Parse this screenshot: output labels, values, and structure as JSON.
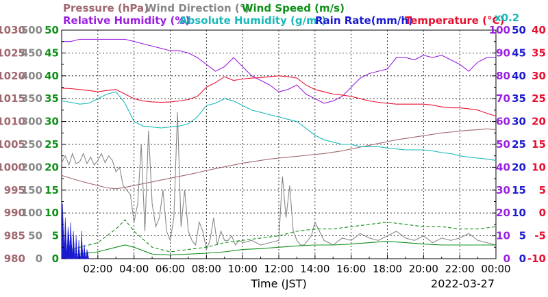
{
  "chart_data": {
    "type": "line",
    "header_row1": [
      {
        "name": "Pressure (hPa)",
        "color": "#a0686e"
      },
      {
        "name": "Wind Direction (°)",
        "color": "#888888"
      },
      {
        "name": "Wind Speed (m/s)",
        "color": "#10901a"
      }
    ],
    "header_row2": [
      {
        "name": "Relative Humidity (%)",
        "color": "#9a1fe0"
      },
      {
        "name": "Absolute Humidity (g/m³)",
        "color": "#1ab8b8"
      },
      {
        "name": "Rain Rate(mm/h)",
        "color": "#1a1ad0"
      },
      {
        "name": "Temperature (°C)",
        "color": "#e81030"
      }
    ],
    "rain_scale_note": "x0.2",
    "xlabel": "Time (JST)",
    "date_label": "2022-03-27",
    "x_range": [
      0,
      24
    ],
    "x_ticks": [
      "02:00",
      "04:00",
      "06:00",
      "08:00",
      "10:00",
      "12:00",
      "14:00",
      "16:00",
      "18:00",
      "20:00",
      "22:00",
      "00:00"
    ],
    "left_axes": [
      {
        "name": "Pressure",
        "color": "#a0686e",
        "ticks": [
          "1030",
          "1025",
          "1020",
          "1015",
          "1010",
          "1005",
          "1000",
          "995",
          "990",
          "985",
          "980"
        ],
        "ylim": [
          980,
          1030
        ]
      },
      {
        "name": "Wind Direction",
        "color": "#888888",
        "ticks": [
          "500",
          "450",
          "400",
          "350",
          "300",
          "250",
          "200",
          "150",
          "100",
          "50",
          "0"
        ],
        "ylim": [
          0,
          500
        ]
      },
      {
        "name": "Wind Speed",
        "color": "#10901a",
        "ticks": [
          "50",
          "45",
          "40",
          "35",
          "30",
          "25",
          "20",
          "15",
          "10",
          "5",
          "0"
        ],
        "ylim": [
          0,
          50
        ]
      }
    ],
    "right_axes": [
      {
        "name": "Relative Humidity",
        "color": "#9a1fe0",
        "ticks": [
          "100",
          "90",
          "80",
          "70",
          "60",
          "50",
          "40",
          "30",
          "20",
          "10",
          "0"
        ],
        "ylim": [
          0,
          100
        ]
      },
      {
        "name": "Rain Rate",
        "color": "#1a1ad0",
        "ticks": [
          "50",
          "45",
          "40",
          "35",
          "30",
          "25",
          "20",
          "15",
          "10",
          "5",
          "0"
        ],
        "ylim": [
          0,
          50
        ]
      },
      {
        "name": "Temperature",
        "color": "#e81030",
        "ticks": [
          "40",
          "35",
          "30",
          "25",
          "20",
          "15",
          "10",
          "5",
          "0",
          "-5",
          "-10"
        ],
        "ylim": [
          -10,
          40
        ]
      }
    ],
    "series": [
      {
        "name": "Pressure (hPa)",
        "color": "#a0686e",
        "axis": "pressure",
        "x": [
          0.0,
          0.5,
          1.0,
          1.5,
          2.0,
          2.5,
          3.0,
          3.5,
          4.0,
          4.5,
          5.0,
          5.5,
          6.0,
          6.5,
          7.0,
          7.5,
          8.0,
          8.5,
          9.0,
          9.5,
          10.0,
          10.5,
          11.0,
          11.5,
          12.0,
          12.5,
          13.0,
          13.5,
          14.0,
          14.5,
          15.0,
          15.5,
          16.0,
          16.5,
          17.0,
          17.5,
          18.0,
          18.5,
          19.0,
          19.5,
          20.0,
          20.5,
          21.0,
          21.5,
          22.0,
          22.5,
          23.0,
          23.5,
          24.0
        ],
        "y": [
          998.2,
          997.6,
          997.0,
          996.5,
          996.0,
          995.5,
          995.3,
          995.6,
          996.0,
          996.4,
          996.8,
          997.2,
          997.6,
          998.0,
          998.4,
          998.8,
          999.3,
          999.7,
          1000.1,
          1000.5,
          1000.9,
          1001.2,
          1001.5,
          1001.8,
          1002.0,
          1002.2,
          1002.4,
          1002.6,
          1002.8,
          1003.0,
          1003.3,
          1003.6,
          1004.0,
          1004.4,
          1004.8,
          1005.2,
          1005.6,
          1006.0,
          1006.3,
          1006.6,
          1006.9,
          1007.2,
          1007.5,
          1007.7,
          1007.9,
          1008.1,
          1008.2,
          1008.4,
          1008.2
        ]
      },
      {
        "name": "Wind Direction (°)",
        "color": "#888888",
        "axis": "wind_dir",
        "x": [
          0.0,
          0.2,
          0.4,
          0.6,
          0.8,
          1.0,
          1.2,
          1.4,
          1.6,
          1.8,
          2.0,
          2.2,
          2.4,
          2.6,
          2.8,
          3.0,
          3.2,
          3.4,
          3.6,
          3.8,
          4.0,
          4.2,
          4.4,
          4.6,
          4.8,
          5.0,
          5.2,
          5.4,
          5.6,
          5.8,
          6.0,
          6.2,
          6.4,
          6.6,
          6.8,
          7.0,
          7.2,
          7.4,
          7.6,
          7.8,
          8.0,
          8.2,
          8.4,
          8.6,
          8.8,
          9.0,
          9.2,
          9.4,
          9.6,
          9.8,
          10.0,
          10.5,
          11.0,
          11.5,
          12.0,
          12.2,
          12.4,
          12.6,
          12.8,
          13.0,
          13.2,
          13.4,
          13.6,
          13.8,
          14.0,
          14.5,
          15.0,
          15.5,
          16.0,
          16.5,
          17.0,
          17.5,
          18.0,
          18.5,
          19.0,
          19.5,
          20.0,
          20.5,
          21.0,
          21.5,
          22.0,
          22.5,
          23.0,
          23.5,
          24.0
        ],
        "y": [
          210,
          225,
          205,
          230,
          208,
          212,
          230,
          208,
          222,
          205,
          215,
          230,
          210,
          225,
          215,
          190,
          200,
          160,
          150,
          140,
          80,
          120,
          250,
          60,
          280,
          120,
          70,
          90,
          150,
          60,
          40,
          90,
          320,
          70,
          150,
          60,
          40,
          30,
          80,
          60,
          20,
          40,
          90,
          30,
          60,
          40,
          40,
          50,
          30,
          40,
          35,
          40,
          30,
          35,
          40,
          180,
          90,
          160,
          60,
          40,
          30,
          30,
          40,
          50,
          80,
          40,
          30,
          45,
          40,
          55,
          45,
          40,
          50,
          60,
          45,
          40,
          50,
          35,
          45,
          40,
          45,
          55,
          40,
          35,
          30
        ]
      },
      {
        "name": "Wind Speed max (m/s)",
        "color": "#10901a",
        "axis": "wind_spd",
        "style": "dashed",
        "x": [
          0,
          1,
          2,
          3,
          3.5,
          4,
          5,
          6,
          7,
          8,
          9,
          10,
          11,
          12,
          13,
          14,
          15,
          16,
          17,
          18,
          19,
          20,
          21,
          22,
          23,
          24
        ],
        "y": [
          1.5,
          2.5,
          3.5,
          6.5,
          8.5,
          6.0,
          2.5,
          1.5,
          2.0,
          2.5,
          3.5,
          4.0,
          4.5,
          5.0,
          6.0,
          6.5,
          6.5,
          7.0,
          7.5,
          8.0,
          7.5,
          7.0,
          7.0,
          6.5,
          6.5,
          7.0
        ]
      },
      {
        "name": "Wind Speed (m/s)",
        "color": "#10901a",
        "axis": "wind_spd",
        "style": "solid",
        "x": [
          0,
          1,
          2,
          3,
          3.5,
          4,
          5,
          6,
          7,
          8,
          9,
          10,
          11,
          12,
          13,
          14,
          15,
          16,
          17,
          18,
          19,
          20,
          21,
          22,
          23,
          24
        ],
        "y": [
          0.8,
          1.0,
          1.5,
          2.5,
          3.0,
          2.5,
          1.0,
          0.8,
          1.0,
          1.2,
          1.5,
          2.0,
          2.2,
          2.5,
          2.8,
          3.0,
          3.0,
          3.2,
          3.5,
          3.8,
          3.5,
          3.2,
          3.0,
          3.0,
          3.0,
          3.0
        ]
      },
      {
        "name": "Relative Humidity (%)",
        "color": "#9a1fe0",
        "axis": "rh",
        "x": [
          0,
          0.5,
          1,
          1.5,
          2,
          2.5,
          3,
          3.5,
          4,
          4.5,
          5,
          5.5,
          6,
          6.5,
          7,
          7.5,
          8,
          8.5,
          9,
          9.5,
          10,
          10.5,
          11,
          11.5,
          12,
          12.5,
          13,
          13.5,
          14,
          14.5,
          15,
          15.5,
          16,
          16.5,
          17,
          17.5,
          18,
          18.5,
          19,
          19.5,
          20,
          20.5,
          21,
          21.5,
          22,
          22.5,
          23,
          23.5,
          24
        ],
        "y": [
          95,
          95,
          96,
          96,
          96,
          96,
          96,
          96,
          95,
          94,
          93,
          92,
          91,
          91,
          90,
          88,
          85,
          82,
          84,
          88,
          84,
          80,
          78,
          76,
          73,
          74,
          76,
          72,
          70,
          68,
          69,
          71,
          75,
          79,
          81,
          82,
          83,
          88,
          88,
          87,
          89,
          88,
          89,
          87,
          85,
          82,
          86,
          88,
          88
        ]
      },
      {
        "name": "Absolute Humidity (g/m³)",
        "color": "#1ab8b8",
        "axis": "abs_h",
        "x": [
          0,
          0.5,
          1,
          1.5,
          2,
          2.5,
          3,
          3.5,
          4,
          4.5,
          5,
          5.5,
          6,
          6.5,
          7,
          7.5,
          8,
          8.5,
          9,
          9.5,
          10,
          10.5,
          11,
          11.5,
          12,
          12.5,
          13,
          13.5,
          14,
          14.5,
          15,
          15.5,
          16,
          16.5,
          17,
          17.5,
          18,
          18.5,
          19,
          19.5,
          20,
          20.5,
          21,
          21.5,
          22,
          22.5,
          23,
          23.5,
          24
        ],
        "y": [
          34.5,
          34.2,
          33.8,
          34.0,
          35.0,
          36.0,
          36.5,
          34.0,
          30.0,
          29.0,
          28.8,
          28.6,
          28.8,
          29.0,
          29.5,
          31.0,
          33.5,
          34.0,
          35.0,
          34.5,
          33.5,
          32.5,
          32.0,
          31.5,
          31.0,
          30.5,
          30.0,
          28.5,
          27.0,
          26.0,
          25.5,
          25.0,
          25.0,
          24.5,
          24.5,
          24.5,
          24.2,
          24.0,
          23.8,
          23.8,
          23.8,
          23.6,
          23.2,
          23.0,
          22.5,
          22.2,
          22.0,
          21.8,
          21.5
        ]
      },
      {
        "name": "Temperature (°C)",
        "color": "#e81030",
        "axis": "temp",
        "x": [
          0,
          0.5,
          1,
          1.5,
          2,
          2.5,
          3,
          3.5,
          4,
          4.5,
          5,
          5.5,
          6,
          6.5,
          7,
          7.5,
          8,
          8.5,
          9,
          9.5,
          10,
          10.5,
          11,
          11.5,
          12,
          12.5,
          13,
          13.5,
          14,
          14.5,
          15,
          15.5,
          16,
          16.5,
          17,
          17.5,
          18,
          18.5,
          19,
          19.5,
          20,
          20.5,
          21,
          21.5,
          22,
          22.5,
          23,
          23.5,
          24
        ],
        "y": [
          27.3,
          27.2,
          27.0,
          26.8,
          26.5,
          26.8,
          27.0,
          26.0,
          25.0,
          24.5,
          24.3,
          24.2,
          24.3,
          24.5,
          24.8,
          25.5,
          27.5,
          28.5,
          29.8,
          29.0,
          29.3,
          29.5,
          29.6,
          29.8,
          30.0,
          29.8,
          29.5,
          28.0,
          27.0,
          26.5,
          26.0,
          25.8,
          25.5,
          25.0,
          24.5,
          24.2,
          24.0,
          23.8,
          23.8,
          23.8,
          23.8,
          23.6,
          23.2,
          23.0,
          23.0,
          22.8,
          22.5,
          21.8,
          21.2
        ]
      },
      {
        "name": "Rain Rate(mm/h)",
        "color": "#1a1ad0",
        "axis": "rain",
        "style": "filled",
        "x": [
          0.0,
          0.05,
          0.1,
          0.15,
          0.2,
          0.25,
          0.3,
          0.35,
          0.4,
          0.45,
          0.5,
          0.55,
          0.6,
          0.65,
          0.7,
          0.75,
          0.8,
          0.85,
          0.9,
          0.95,
          1.0,
          1.05,
          1.1,
          1.15,
          1.2,
          1.25,
          1.3,
          1.35,
          1.4,
          1.45,
          1.5
        ],
        "y": [
          2,
          12,
          6,
          2,
          9,
          4,
          1,
          7,
          5,
          2,
          8,
          3,
          1,
          6,
          2,
          0,
          5,
          1,
          0,
          4,
          1,
          0,
          6,
          2,
          0,
          3,
          1,
          0,
          2,
          1,
          0
        ]
      }
    ]
  }
}
